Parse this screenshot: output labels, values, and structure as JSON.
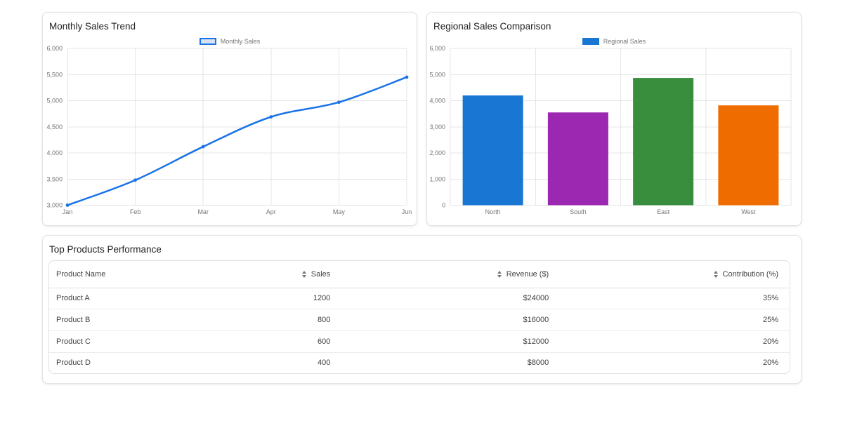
{
  "chart_data": [
    {
      "type": "line",
      "title": "Monthly Sales Trend",
      "categories": [
        "Jan",
        "Feb",
        "Mar",
        "Apr",
        "May",
        "Jun"
      ],
      "series": [
        {
          "name": "Monthly Sales",
          "values": [
            3000,
            3480,
            4120,
            4690,
            4970,
            5450
          ]
        }
      ],
      "ylim": [
        3000,
        6000
      ],
      "ystep": 500,
      "grid": true,
      "legend_position": "top",
      "colors": {
        "line": "#1a73e8",
        "legend_fill": "#d7e1f0"
      }
    },
    {
      "type": "bar",
      "title": "Regional Sales Comparison",
      "categories": [
        "North",
        "South",
        "East",
        "West"
      ],
      "series": [
        {
          "name": "Regional Sales",
          "values": [
            4200,
            3550,
            4870,
            3820
          ]
        }
      ],
      "ylim": [
        0,
        6000
      ],
      "ystep": 1000,
      "grid": true,
      "legend_position": "top",
      "colors": {
        "bars": [
          "#1976d2",
          "#9c27b0",
          "#388e3c",
          "#ef6c00"
        ],
        "legend": "#1976d2"
      }
    },
    {
      "type": "table",
      "title": "Top Products Performance",
      "columns": [
        {
          "label": "Product Name",
          "sortable": false
        },
        {
          "label": "Sales",
          "sortable": true
        },
        {
          "label": "Revenue ($)",
          "sortable": true
        },
        {
          "label": "Contribution (%)",
          "sortable": true
        }
      ],
      "rows": [
        [
          "Product A",
          "1200",
          "$24000",
          "35%"
        ],
        [
          "Product B",
          "800",
          "$16000",
          "25%"
        ],
        [
          "Product C",
          "600",
          "$12000",
          "20%"
        ],
        [
          "Product D",
          "400",
          "$8000",
          "20%"
        ]
      ]
    }
  ]
}
